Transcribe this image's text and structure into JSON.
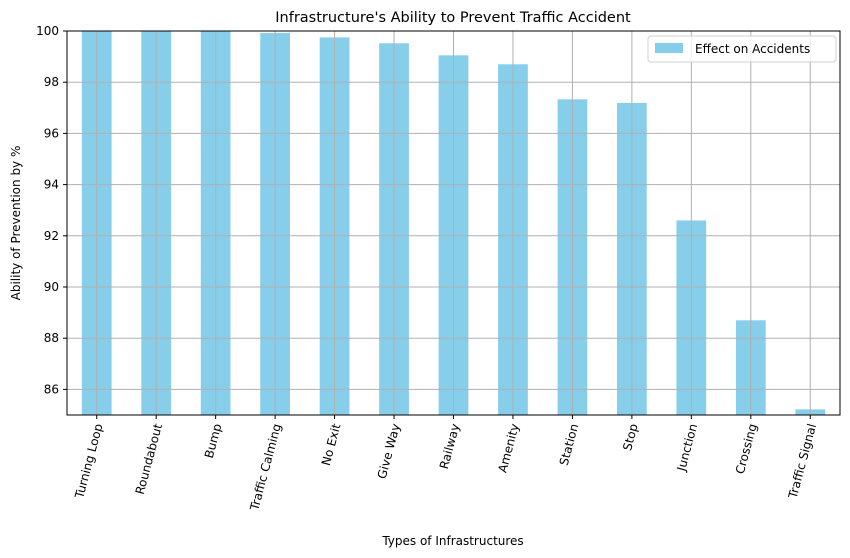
{
  "chart_data": {
    "type": "bar",
    "title": "Infrastructure's Ability to Prevent Traffic Accident",
    "xlabel": "Types of Infrastructures",
    "ylabel": "Ability of Prevention by %",
    "categories": [
      "Turning Loop",
      "Roundabout",
      "Bump",
      "Traffic Calming",
      "No Exit",
      "Give Way",
      "Railway",
      "Amenity",
      "Station",
      "Stop",
      "Junction",
      "Crossing",
      "Traffic Signal"
    ],
    "series": [
      {
        "name": "Effect on Accidents",
        "values": [
          100.0,
          100.0,
          100.0,
          99.92,
          99.75,
          99.52,
          99.05,
          98.7,
          97.33,
          97.19,
          92.6,
          88.7,
          85.22
        ]
      }
    ],
    "ylim": [
      85,
      100
    ],
    "yticks": [
      86,
      88,
      90,
      92,
      94,
      96,
      98,
      100
    ],
    "grid": true,
    "legend_position": "top-right",
    "colors": {
      "bar": "#87ceeb",
      "grid": "#b0b0b0",
      "axes": "#000000"
    },
    "x_tick_rotation_deg": 75
  }
}
